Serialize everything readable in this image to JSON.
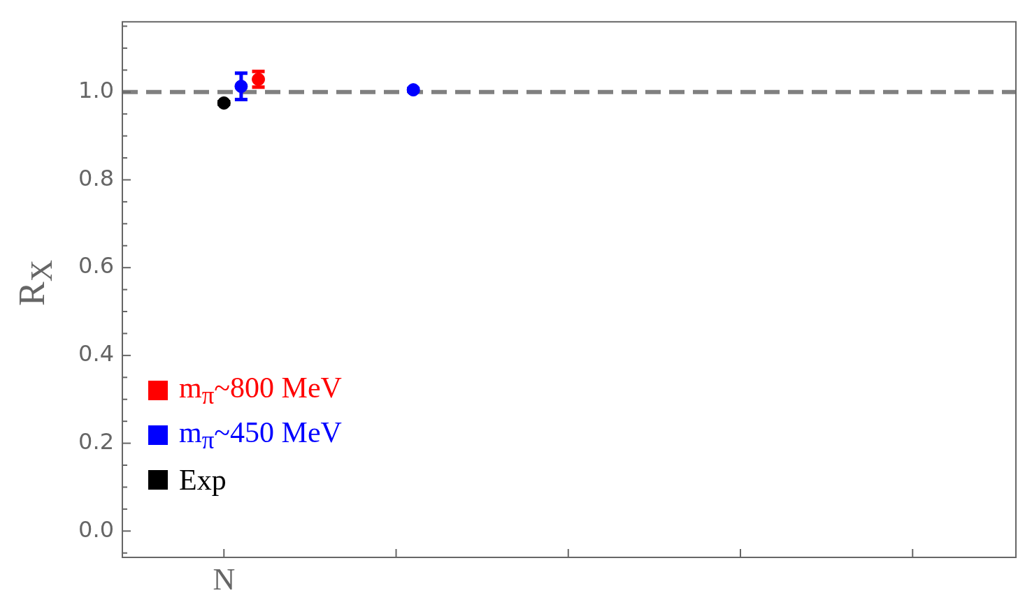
{
  "chart_data": {
    "type": "scatter",
    "ylabel": "R$_{X}$",
    "categories": [
      "N",
      null,
      null,
      null,
      null
    ],
    "ylim": [
      -0.06,
      1.16
    ],
    "yticks": [
      {
        "value": -0.05,
        "label": null
      },
      {
        "value": 0,
        "label": "0.0"
      },
      {
        "value": 0.05,
        "label": null
      },
      {
        "value": 0.1,
        "label": null
      },
      {
        "value": 0.15,
        "label": null
      },
      {
        "value": 0.2,
        "label": "0.2"
      },
      {
        "value": 0.25,
        "label": null
      },
      {
        "value": 0.3,
        "label": null
      },
      {
        "value": 0.35,
        "label": null
      },
      {
        "value": 0.4,
        "label": "0.4"
      },
      {
        "value": 0.45,
        "label": null
      },
      {
        "value": 0.5,
        "label": null
      },
      {
        "value": 0.55,
        "label": null
      },
      {
        "value": 0.6,
        "label": "0.6"
      },
      {
        "value": 0.65,
        "label": null
      },
      {
        "value": 0.7,
        "label": null
      },
      {
        "value": 0.75,
        "label": null
      },
      {
        "value": 0.8,
        "label": "0.8"
      },
      {
        "value": 0.85,
        "label": null
      },
      {
        "value": 0.9,
        "label": null
      },
      {
        "value": 0.95,
        "label": null
      },
      {
        "value": 1.0,
        "label": "1.0"
      },
      {
        "value": 1.05,
        "label": null
      },
      {
        "value": 1.1,
        "label": null
      },
      {
        "value": 1.15,
        "label": null
      }
    ],
    "series": [
      {
        "name": "m$_{π}$~800 MeV",
        "color": "#ff0000",
        "values": [
          1.029,
          null,
          null,
          null,
          null
        ],
        "errors": [
          0.018,
          null,
          null,
          null,
          null
        ]
      },
      {
        "name": "m$_{π}$~450 MeV",
        "color": "#0000ff",
        "values": [
          1.013,
          1.005,
          null,
          null,
          null
        ],
        "errors": [
          0.03,
          0.003,
          null,
          null,
          null
        ]
      },
      {
        "name": "Exp",
        "color": "#000000",
        "values": [
          0.975,
          null,
          null,
          null,
          null
        ],
        "errors": [
          0.003,
          null,
          null,
          null,
          null
        ]
      }
    ],
    "ref_lines": [
      {
        "axis": "y",
        "value": 1.0,
        "color": "#808080",
        "line_style": "dashed"
      }
    ],
    "grid": false,
    "legend": "bottom left",
    "marker": "circle"
  }
}
